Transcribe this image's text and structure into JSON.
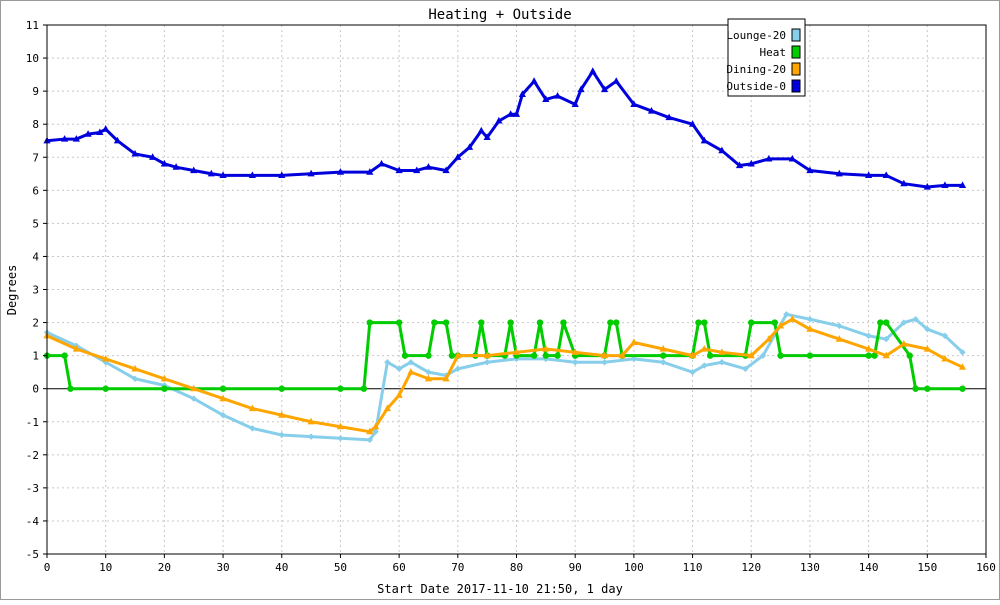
{
  "chart_data": {
    "type": "line",
    "title": "Heating + Outside",
    "xlabel": "Start Date 2017-11-10 21:50, 1 day",
    "ylabel": "Degrees",
    "xlim": [
      0,
      160
    ],
    "ylim": [
      -5,
      11
    ],
    "xticks": [
      0,
      10,
      20,
      30,
      40,
      50,
      60,
      70,
      80,
      90,
      100,
      110,
      120,
      130,
      140,
      150,
      160
    ],
    "yticks": [
      -5,
      -4,
      -3,
      -2,
      -1,
      0,
      1,
      2,
      3,
      4,
      5,
      6,
      7,
      8,
      9,
      10,
      11
    ],
    "grid": true,
    "legend_position": "top-right",
    "series": [
      {
        "name": "Lounge-20",
        "color": "#87ceeb",
        "marker": "diamond",
        "x": [
          0,
          5,
          10,
          15,
          20,
          25,
          30,
          35,
          40,
          45,
          50,
          55,
          56,
          58,
          60,
          62,
          65,
          68,
          70,
          75,
          80,
          85,
          90,
          95,
          100,
          105,
          110,
          112,
          115,
          119,
          122,
          126,
          130,
          135,
          140,
          143,
          146,
          148,
          150,
          153,
          156
        ],
        "y": [
          1.7,
          1.3,
          0.8,
          0.3,
          0.1,
          -0.3,
          -0.8,
          -1.2,
          -1.4,
          -1.45,
          -1.5,
          -1.55,
          -1.3,
          0.8,
          0.6,
          0.8,
          0.5,
          0.4,
          0.6,
          0.8,
          0.9,
          0.9,
          0.8,
          0.8,
          0.9,
          0.8,
          0.5,
          0.7,
          0.8,
          0.6,
          1.0,
          2.25,
          2.1,
          1.9,
          1.6,
          1.5,
          2.0,
          2.1,
          1.8,
          1.6,
          1.1
        ]
      },
      {
        "name": "Heat",
        "color": "#00cc00",
        "marker": "circle",
        "x": [
          0,
          3,
          4,
          10,
          20,
          30,
          40,
          50,
          54,
          55,
          60,
          61,
          65,
          66,
          68,
          69,
          70,
          73,
          74,
          75,
          78,
          79,
          80,
          83,
          84,
          85,
          87,
          88,
          90,
          95,
          96,
          97,
          98,
          105,
          110,
          111,
          112,
          113,
          119,
          120,
          124,
          125,
          130,
          140,
          141,
          142,
          143,
          147,
          148,
          150,
          156
        ],
        "y": [
          1,
          1,
          0,
          0,
          0,
          0,
          0,
          0,
          0,
          2,
          2,
          1,
          1,
          2,
          2,
          1,
          1,
          1,
          2,
          1,
          1,
          2,
          1,
          1,
          2,
          1,
          1,
          2,
          1,
          1,
          2,
          2,
          1,
          1,
          1,
          2,
          2,
          1,
          1,
          2,
          2,
          1,
          1,
          1,
          1,
          2,
          2,
          1,
          0,
          0,
          0
        ]
      },
      {
        "name": "Dining-20",
        "color": "#ffa500",
        "marker": "triangle",
        "x": [
          0,
          5,
          10,
          15,
          20,
          25,
          30,
          35,
          40,
          45,
          50,
          55,
          56,
          58,
          60,
          62,
          65,
          68,
          70,
          75,
          80,
          85,
          90,
          95,
          98,
          100,
          105,
          110,
          112,
          115,
          120,
          123,
          125,
          127,
          130,
          135,
          140,
          143,
          146,
          150,
          153,
          156
        ],
        "y": [
          1.6,
          1.2,
          0.9,
          0.6,
          0.3,
          0.0,
          -0.3,
          -0.6,
          -0.8,
          -1.0,
          -1.15,
          -1.3,
          -1.15,
          -0.6,
          -0.2,
          0.5,
          0.3,
          0.3,
          1.0,
          1.0,
          1.1,
          1.2,
          1.1,
          1.0,
          1.0,
          1.4,
          1.2,
          1.0,
          1.2,
          1.1,
          1.0,
          1.5,
          1.9,
          2.1,
          1.8,
          1.5,
          1.2,
          1.0,
          1.35,
          1.2,
          0.9,
          0.65
        ]
      },
      {
        "name": "Outside-0",
        "color": "#0000dd",
        "marker": "triangle",
        "x": [
          0,
          3,
          5,
          7,
          9,
          10,
          12,
          15,
          18,
          20,
          22,
          25,
          28,
          30,
          35,
          40,
          45,
          50,
          55,
          57,
          60,
          63,
          65,
          68,
          70,
          72,
          74,
          75,
          77,
          79,
          80,
          81,
          83,
          85,
          87,
          90,
          91,
          93,
          95,
          97,
          100,
          103,
          106,
          110,
          112,
          115,
          118,
          120,
          123,
          127,
          130,
          135,
          140,
          143,
          146,
          150,
          153,
          156
        ],
        "y": [
          7.5,
          7.55,
          7.55,
          7.7,
          7.75,
          7.85,
          7.5,
          7.1,
          7.0,
          6.8,
          6.7,
          6.6,
          6.5,
          6.45,
          6.45,
          6.45,
          6.5,
          6.55,
          6.55,
          6.8,
          6.6,
          6.6,
          6.7,
          6.6,
          7.0,
          7.3,
          7.8,
          7.6,
          8.1,
          8.3,
          8.3,
          8.9,
          9.3,
          8.75,
          8.85,
          8.6,
          9.05,
          9.6,
          9.05,
          9.3,
          8.6,
          8.4,
          8.2,
          8.0,
          7.5,
          7.2,
          6.75,
          6.8,
          6.95,
          6.95,
          6.6,
          6.5,
          6.45,
          6.45,
          6.2,
          6.1,
          6.15,
          6.15
        ]
      }
    ]
  }
}
